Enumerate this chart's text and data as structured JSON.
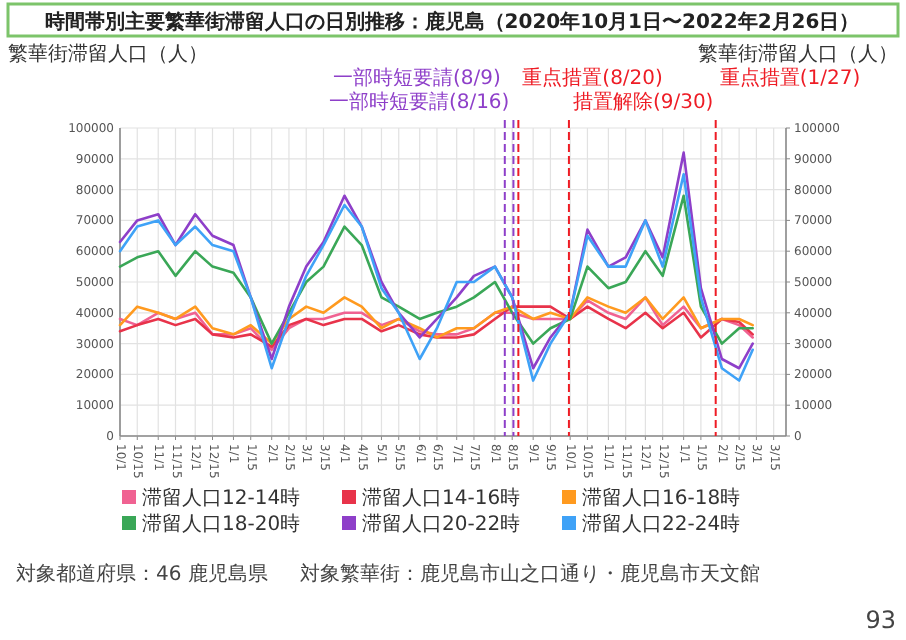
{
  "chart_data": {
    "type": "line",
    "title": "時間帯別主要繁華街滞留人口の日別推移：鹿児島（2020年10月1日〜2022年2月26日）",
    "ylabel": "繁華街滞留人口（人）",
    "y2label": "繁華街滞留人口（人）",
    "x": [
      "2020-10-01",
      "2020-10-15",
      "2020-11-01",
      "2020-11-15",
      "2020-12-01",
      "2020-12-15",
      "2021-01-01",
      "2021-01-15",
      "2021-02-01",
      "2021-02-15",
      "2021-03-01",
      "2021-03-15",
      "2021-04-01",
      "2021-04-15",
      "2021-05-01",
      "2021-05-15",
      "2021-06-01",
      "2021-06-15",
      "2021-07-01",
      "2021-07-15",
      "2021-08-01",
      "2021-08-15",
      "2021-09-01",
      "2021-09-15",
      "2021-10-01",
      "2021-10-15",
      "2021-11-01",
      "2021-11-15",
      "2021-12-01",
      "2021-12-15",
      "2022-01-01",
      "2022-01-15",
      "2022-02-01",
      "2022-02-15",
      "2022-02-26"
    ],
    "xlim": [
      "2020-10-01",
      "2022-03-25"
    ],
    "xticks": [
      {
        "value": "2020-10-01",
        "label": "10/1"
      },
      {
        "value": "2020-10-15",
        "label": "10/15"
      },
      {
        "value": "2020-11-01",
        "label": "11/1"
      },
      {
        "value": "2020-11-15",
        "label": "11/15"
      },
      {
        "value": "2020-12-01",
        "label": "12/1"
      },
      {
        "value": "2020-12-15",
        "label": "12/15"
      },
      {
        "value": "2021-01-01",
        "label": "1/1"
      },
      {
        "value": "2021-01-15",
        "label": "1/15"
      },
      {
        "value": "2021-02-01",
        "label": "2/1"
      },
      {
        "value": "2021-02-15",
        "label": "2/15"
      },
      {
        "value": "2021-03-01",
        "label": "3/1"
      },
      {
        "value": "2021-03-15",
        "label": "3/15"
      },
      {
        "value": "2021-04-01",
        "label": "4/1"
      },
      {
        "value": "2021-04-15",
        "label": "4/15"
      },
      {
        "value": "2021-05-01",
        "label": "5/1"
      },
      {
        "value": "2021-05-15",
        "label": "5/15"
      },
      {
        "value": "2021-06-01",
        "label": "6/1"
      },
      {
        "value": "2021-06-15",
        "label": "6/15"
      },
      {
        "value": "2021-07-01",
        "label": "7/1"
      },
      {
        "value": "2021-07-15",
        "label": "7/15"
      },
      {
        "value": "2021-08-01",
        "label": "8/1"
      },
      {
        "value": "2021-08-15",
        "label": "8/15"
      },
      {
        "value": "2021-09-01",
        "label": "9/1"
      },
      {
        "value": "2021-09-15",
        "label": "9/15"
      },
      {
        "value": "2021-10-01",
        "label": "10/1"
      },
      {
        "value": "2021-10-15",
        "label": "10/15"
      },
      {
        "value": "2021-11-01",
        "label": "11/1"
      },
      {
        "value": "2021-11-15",
        "label": "11/15"
      },
      {
        "value": "2021-12-01",
        "label": "12/1"
      },
      {
        "value": "2021-12-15",
        "label": "12/15"
      },
      {
        "value": "2022-01-01",
        "label": "1/1"
      },
      {
        "value": "2022-01-15",
        "label": "1/15"
      },
      {
        "value": "2022-02-01",
        "label": "2/1"
      },
      {
        "value": "2022-02-15",
        "label": "2/15"
      },
      {
        "value": "2022-03-01",
        "label": "3/1"
      },
      {
        "value": "2022-03-15",
        "label": "3/15"
      }
    ],
    "ylim": [
      0,
      100000
    ],
    "yticks": [
      0,
      10000,
      20000,
      30000,
      40000,
      50000,
      60000,
      70000,
      80000,
      90000,
      100000
    ],
    "y2lim": [
      0,
      100000
    ],
    "y2ticks": [
      0,
      10000,
      20000,
      30000,
      40000,
      50000,
      60000,
      70000,
      80000,
      90000,
      100000
    ],
    "grid": true,
    "legend": "bottom",
    "series": [
      {
        "name": "滞留人口12-14時",
        "color": "#f06292",
        "values": [
          38000,
          36000,
          40000,
          38000,
          40000,
          33000,
          33000,
          35000,
          28000,
          35000,
          38000,
          38000,
          40000,
          40000,
          36000,
          38000,
          34000,
          33000,
          33000,
          35000,
          40000,
          40000,
          38000,
          38000,
          38000,
          44000,
          40000,
          38000,
          45000,
          36000,
          42000,
          35000,
          38000,
          36000,
          32000
        ]
      },
      {
        "name": "滞留人口14-16時",
        "color": "#e8334a",
        "values": [
          34000,
          36000,
          38000,
          36000,
          38000,
          33000,
          32000,
          33000,
          29000,
          36000,
          38000,
          36000,
          38000,
          38000,
          34000,
          36000,
          33000,
          32000,
          32000,
          33000,
          38000,
          42000,
          42000,
          42000,
          38000,
          42000,
          38000,
          35000,
          40000,
          35000,
          40000,
          32000,
          38000,
          37000,
          33000
        ]
      },
      {
        "name": "滞留人口16-18時",
        "color": "#ff9a1f",
        "values": [
          36000,
          42000,
          40000,
          38000,
          42000,
          35000,
          33000,
          36000,
          30000,
          38000,
          42000,
          40000,
          45000,
          42000,
          35000,
          38000,
          35000,
          32000,
          35000,
          35000,
          40000,
          42000,
          38000,
          40000,
          38000,
          45000,
          42000,
          40000,
          45000,
          38000,
          45000,
          35000,
          38000,
          38000,
          36000
        ]
      },
      {
        "name": "滞留人口18-20時",
        "color": "#3aa757",
        "values": [
          55000,
          58000,
          60000,
          52000,
          60000,
          55000,
          53000,
          45000,
          30000,
          40000,
          50000,
          55000,
          68000,
          62000,
          45000,
          42000,
          38000,
          40000,
          42000,
          45000,
          50000,
          40000,
          30000,
          35000,
          38000,
          55000,
          48000,
          50000,
          60000,
          52000,
          78000,
          42000,
          30000,
          35000,
          35000
        ]
      },
      {
        "name": "滞留人口20-22時",
        "color": "#8e3fc9",
        "values": [
          63000,
          70000,
          72000,
          62000,
          72000,
          65000,
          62000,
          45000,
          25000,
          42000,
          55000,
          63000,
          78000,
          68000,
          50000,
          40000,
          32000,
          38000,
          45000,
          52000,
          55000,
          45000,
          22000,
          32000,
          40000,
          67000,
          55000,
          58000,
          70000,
          58000,
          92000,
          48000,
          25000,
          22000,
          30000
        ]
      },
      {
        "name": "滞留人口22-24時",
        "color": "#3fa2f7",
        "values": [
          60000,
          68000,
          70000,
          62000,
          68000,
          62000,
          60000,
          45000,
          22000,
          38000,
          52000,
          62000,
          75000,
          68000,
          48000,
          40000,
          25000,
          35000,
          50000,
          50000,
          55000,
          45000,
          18000,
          30000,
          40000,
          65000,
          55000,
          55000,
          70000,
          55000,
          85000,
          45000,
          22000,
          18000,
          28000
        ]
      }
    ],
    "ref_lines": [
      {
        "axis": "x",
        "value": "2021-08-09",
        "label": "一部時短要請(8/9)",
        "color": "#8e3fc9",
        "line_style": "dashed"
      },
      {
        "axis": "x",
        "value": "2021-08-16",
        "label": "一部時短要請(8/16)",
        "color": "#8e3fc9",
        "line_style": "dashed"
      },
      {
        "axis": "x",
        "value": "2021-08-20",
        "label": "重点措置(8/20)",
        "color": "#ee1c25",
        "line_style": "dashed"
      },
      {
        "axis": "x",
        "value": "2021-09-30",
        "label": "措置解除(9/30)",
        "color": "#ee1c25",
        "line_style": "dashed"
      },
      {
        "axis": "x",
        "value": "2022-01-27",
        "label": "重点措置(1/27)",
        "color": "#ee1c25",
        "line_style": "dashed"
      }
    ],
    "annotations": [
      "対象都道府県：46 鹿児島県",
      "対象繁華街：鹿児島市山之口通り・鹿児島市天文館",
      "93"
    ]
  }
}
